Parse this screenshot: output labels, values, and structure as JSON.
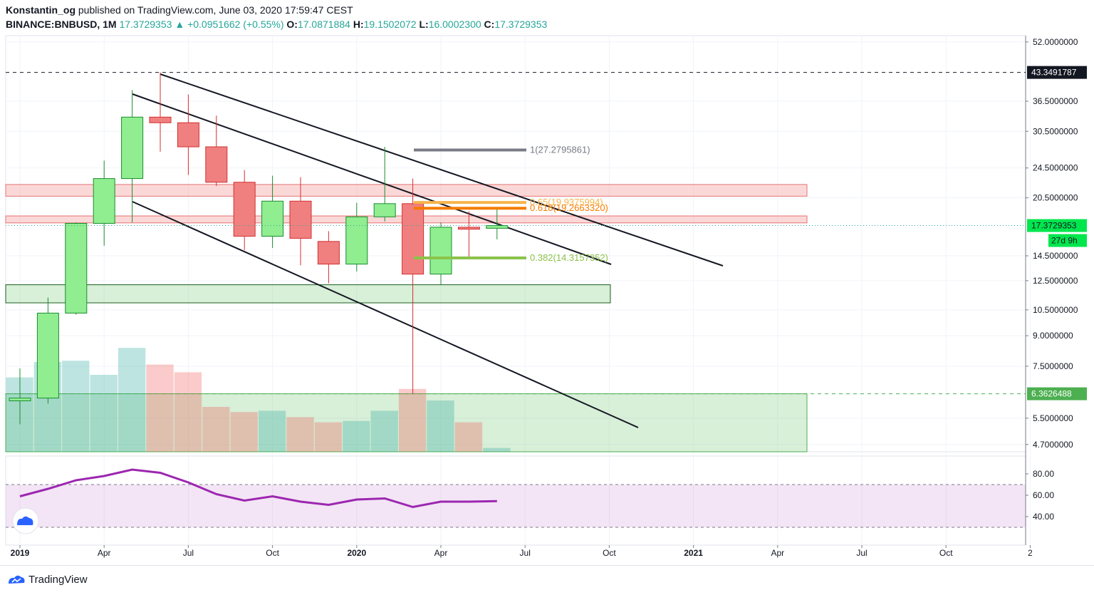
{
  "header": {
    "publisher": "Konstantin_og",
    "published_text": "published on TradingView.com, June 03, 2020 17:59:47 CEST",
    "symbol": "BINANCE:BNBUSD, 1M",
    "last": "17.3729353",
    "arrow": "▲",
    "change": "+0.0951662 (+0.55%)",
    "o_label": "O:",
    "o": "17.0871884",
    "h_label": "H:",
    "h": "19.1502072",
    "l_label": "L:",
    "l": "16.0002300",
    "c_label": "C:",
    "c": "17.3729353"
  },
  "footer": {
    "brand": "TradingView"
  },
  "colors": {
    "up": "#26a69a",
    "up_fill": "#90ee90",
    "up_border": "#1b8c2e",
    "down_fill": "#f08080",
    "down_border": "#d32f2f",
    "fib_1": "#787b86",
    "fib_065": "#f7b44a",
    "fib_0618": "#f57c00",
    "fib_0382": "#8bc34a",
    "rsi": "#9c27b0",
    "last_tag": "#00e64d"
  },
  "chart_data": {
    "type": "candlestick",
    "scale": "log",
    "price_range": [
      4.5,
      54
    ],
    "x_axis": [
      "2019",
      "Apr",
      "Jul",
      "Oct",
      "2020",
      "Apr",
      "Jul",
      "Oct",
      "2021",
      "Apr",
      "Jul",
      "Oct",
      "2"
    ],
    "y_axis": [
      "52.0000000",
      "36.5000000",
      "30.5000000",
      "24.5000000",
      "20.5000000",
      "14.5000000",
      "12.5000000",
      "10.5000000",
      "9.0000000",
      "7.5000000",
      "5.5000000",
      "4.7000000"
    ],
    "candles": [
      {
        "m": "2019-01",
        "o": 6.1,
        "h": 7.4,
        "l": 5.3,
        "c": 6.2
      },
      {
        "m": "2019-02",
        "o": 6.2,
        "h": 11.3,
        "l": 6.0,
        "c": 10.3
      },
      {
        "m": "2019-03",
        "o": 10.3,
        "h": 17.7,
        "l": 10.2,
        "c": 17.6
      },
      {
        "m": "2019-04",
        "o": 17.6,
        "h": 25.6,
        "l": 15.4,
        "c": 23.0
      },
      {
        "m": "2019-05",
        "o": 23.0,
        "h": 39.0,
        "l": 17.7,
        "c": 33.2
      },
      {
        "m": "2019-06",
        "o": 33.2,
        "h": 43.35,
        "l": 27.0,
        "c": 32.1
      },
      {
        "m": "2019-07",
        "o": 32.1,
        "h": 38.0,
        "l": 23.5,
        "c": 27.8
      },
      {
        "m": "2019-08",
        "o": 27.8,
        "h": 33.5,
        "l": 22.0,
        "c": 22.5
      },
      {
        "m": "2019-09",
        "o": 22.5,
        "h": 24.2,
        "l": 15.0,
        "c": 16.3
      },
      {
        "m": "2019-10",
        "o": 16.3,
        "h": 23.4,
        "l": 15.2,
        "c": 20.1
      },
      {
        "m": "2019-11",
        "o": 20.1,
        "h": 23.2,
        "l": 13.7,
        "c": 16.1
      },
      {
        "m": "2019-12",
        "o": 15.8,
        "h": 16.8,
        "l": 12.3,
        "c": 13.8
      },
      {
        "m": "2020-01",
        "o": 13.8,
        "h": 19.9,
        "l": 13.2,
        "c": 18.3
      },
      {
        "m": "2020-02",
        "o": 18.3,
        "h": 27.8,
        "l": 17.8,
        "c": 19.8
      },
      {
        "m": "2020-03",
        "o": 19.8,
        "h": 23.0,
        "l": 6.36,
        "c": 13.0
      },
      {
        "m": "2020-04",
        "o": 13.0,
        "h": 17.7,
        "l": 12.2,
        "c": 17.2
      },
      {
        "m": "2020-05",
        "o": 17.2,
        "h": 18.9,
        "l": 14.2,
        "c": 17.0
      },
      {
        "m": "2020-06",
        "o": 17.09,
        "h": 19.15,
        "l": 16.0,
        "c": 17.37
      }
    ],
    "volume": [
      58,
      70,
      71,
      60,
      81,
      68,
      62,
      35,
      31,
      32,
      27,
      23,
      24,
      32,
      49,
      40,
      23,
      3
    ],
    "rsi": {
      "values": [
        59,
        66,
        74,
        78,
        84,
        81,
        72,
        61,
        55,
        59,
        54,
        51,
        56,
        57,
        49,
        54,
        54,
        54.5
      ],
      "axis": [
        "80.00",
        "60.00",
        "40.00"
      ],
      "band": [
        30,
        70
      ]
    },
    "levels": [
      {
        "price": 43.3491787,
        "label": "43.3491787"
      },
      {
        "price": 6.3626488,
        "label": "6.3626488"
      }
    ],
    "last_price": {
      "label": "17.3729353",
      "countdown": "27d 9h"
    },
    "fibonacci": [
      {
        "ratio": "1",
        "price": 27.2795861,
        "label": "1(27.2795861)"
      },
      {
        "ratio": "0.65",
        "price": 19.9375994,
        "label": "0.65(19.9375994)"
      },
      {
        "ratio": "0.618",
        "price": 19.266332,
        "label": "0.618(19.2663320)"
      },
      {
        "ratio": "0.382",
        "price": 14.3157352,
        "label": "0.382(14.3157352)"
      }
    ]
  }
}
